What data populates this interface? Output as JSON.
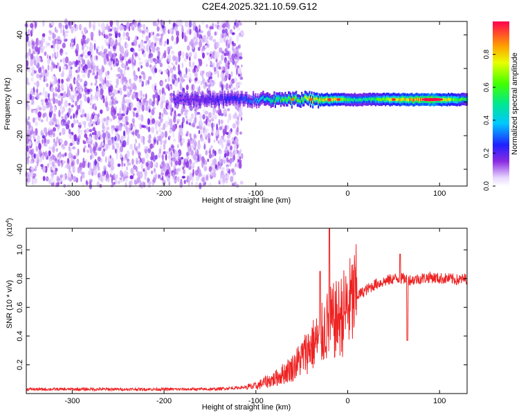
{
  "title": "C2E4.2025.321.10.59.G12",
  "chart_data": [
    {
      "type": "heatmap",
      "title": "C2E4.2025.321.10.59.G12",
      "xlabel": "Height of straight line (km)",
      "ylabel": "Frequency (Hz)",
      "xlim": [
        -350,
        130
      ],
      "ylim": [
        -50,
        48
      ],
      "xticks": [
        -300,
        -200,
        -100,
        0,
        100
      ],
      "yticks": [
        -40,
        -20,
        0,
        20,
        40
      ],
      "colorbar": {
        "label": "Normalized spectral amplitude",
        "range": [
          0,
          1
        ],
        "ticks": [
          0.0,
          0.2,
          0.4,
          0.6,
          0.8
        ]
      },
      "noise_region_x": [
        -350,
        -115
      ],
      "signal_center_freq_hz": 1.5,
      "description_series": [
        {
          "x": -180,
          "amplitude": 0.15
        },
        {
          "x": -120,
          "amplitude": 0.25
        },
        {
          "x": -100,
          "amplitude": 0.35
        },
        {
          "x": -80,
          "amplitude": 0.55
        },
        {
          "x": -60,
          "amplitude": 0.6
        },
        {
          "x": -40,
          "amplitude": 0.7
        },
        {
          "x": -20,
          "amplitude": 0.85
        },
        {
          "x": 0,
          "amplitude": 0.55
        },
        {
          "x": 20,
          "amplitude": 0.5
        },
        {
          "x": 50,
          "amplitude": 0.75
        },
        {
          "x": 90,
          "amplitude": 0.95
        },
        {
          "x": 130,
          "amplitude": 0.5
        }
      ]
    },
    {
      "type": "line",
      "xlabel": "Height of straight line (km)",
      "ylabel": "SNR (10 * v/v)",
      "yscale_label": "(x10",
      "yscale_exp": "4",
      "yscale_close": ")",
      "xlim": [
        -350,
        130
      ],
      "ylim": [
        0,
        1.15
      ],
      "xticks": [
        -300,
        -200,
        -100,
        0,
        100
      ],
      "yticks": [
        0.2,
        0.4,
        0.6,
        0.8,
        1.0
      ],
      "color": "#ee2222",
      "series": [
        {
          "name": "SNR",
          "x": [
            -350,
            -300,
            -250,
            -200,
            -150,
            -120,
            -100,
            -90,
            -80,
            -70,
            -60,
            -50,
            -40,
            -30,
            -25,
            -20,
            -15,
            -10,
            0,
            10,
            20,
            30,
            40,
            50,
            60,
            70,
            80,
            90,
            100,
            110,
            120,
            130
          ],
          "y": [
            0.03,
            0.03,
            0.03,
            0.03,
            0.03,
            0.04,
            0.05,
            0.08,
            0.1,
            0.14,
            0.18,
            0.25,
            0.33,
            0.38,
            0.45,
            0.48,
            0.5,
            0.52,
            0.6,
            0.68,
            0.72,
            0.76,
            0.78,
            0.8,
            0.8,
            0.79,
            0.8,
            0.81,
            0.8,
            0.8,
            0.79,
            0.8
          ]
        }
      ],
      "annotations": [
        {
          "x": -20,
          "y": 1.15,
          "note": "spike"
        },
        {
          "x": -30,
          "y": 0.85,
          "note": "spike"
        },
        {
          "x": 57,
          "y": 0.97,
          "note": "spike"
        },
        {
          "x": 65,
          "y": 0.37,
          "note": "dip"
        }
      ]
    }
  ]
}
